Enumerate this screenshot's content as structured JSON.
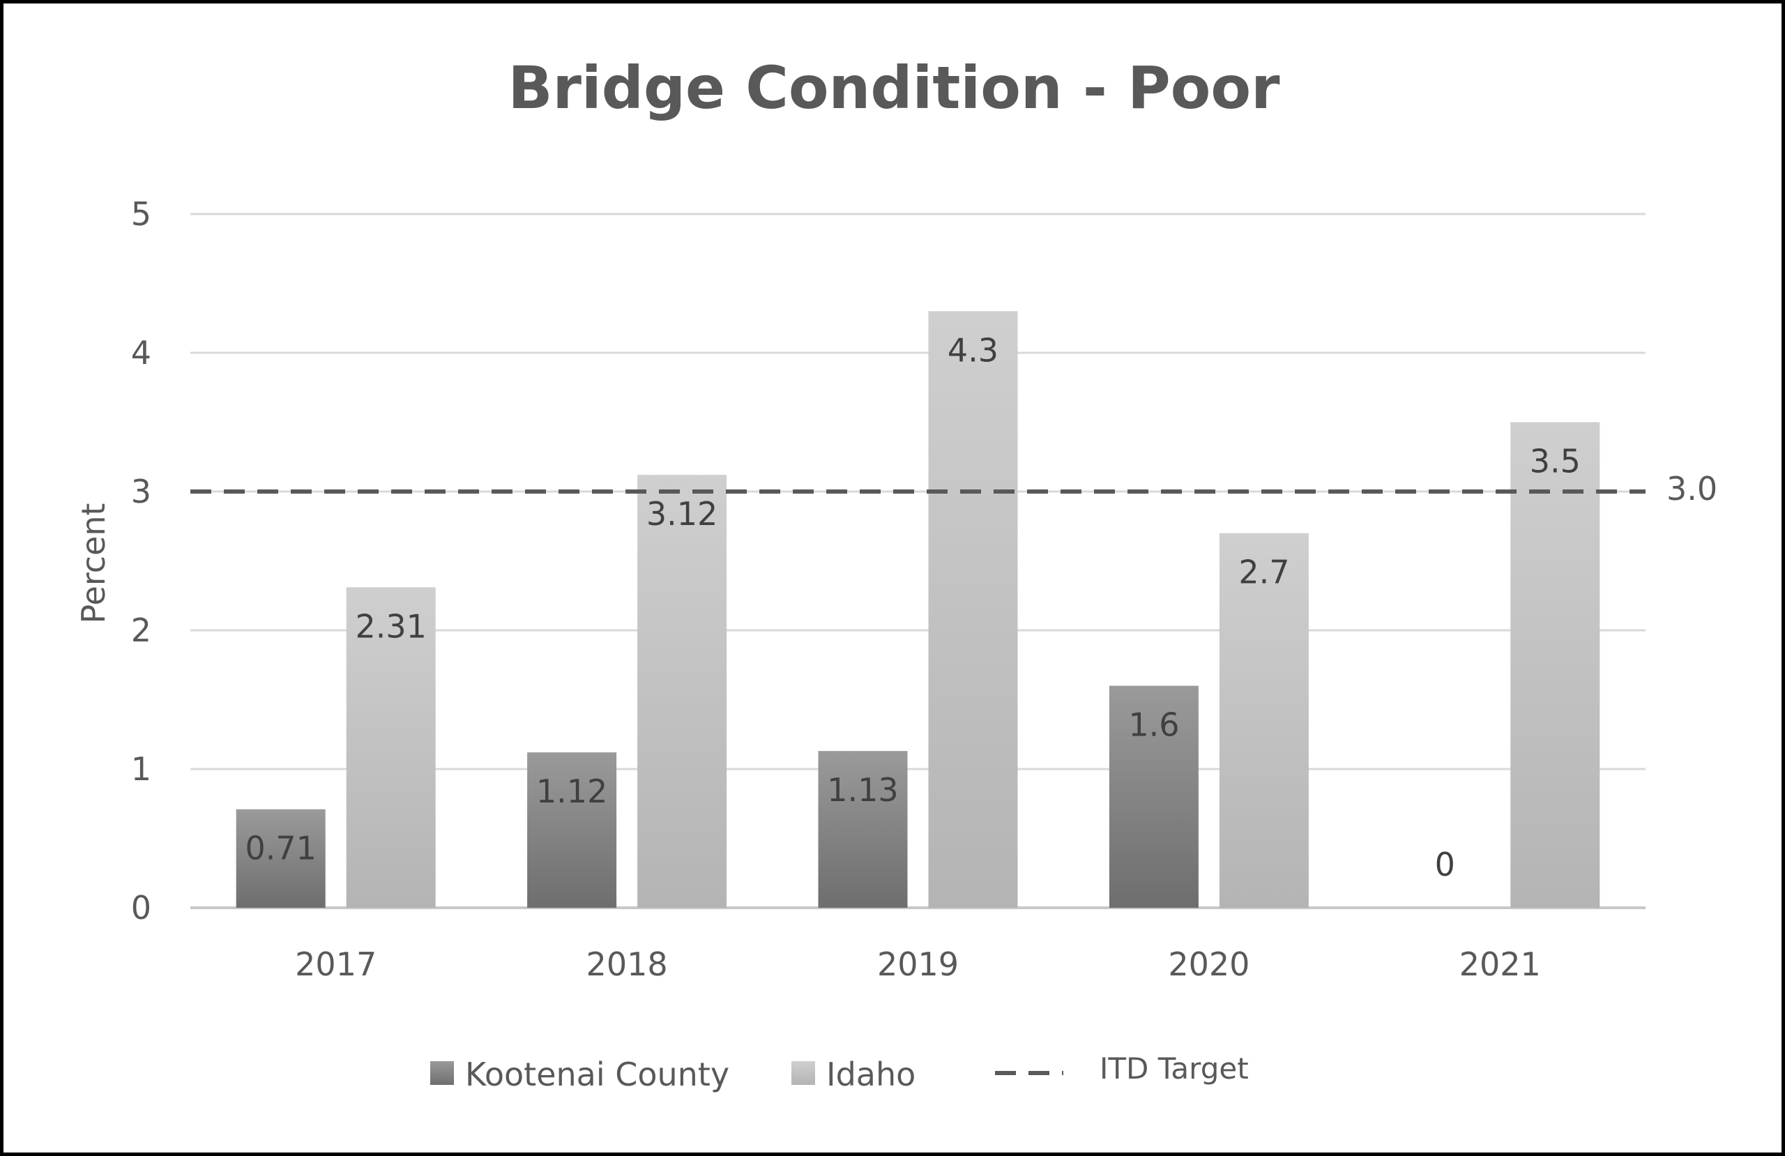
{
  "chart_data": {
    "type": "bar",
    "title": "Bridge Condition - Poor",
    "xlabel": "",
    "ylabel": "Percent",
    "ylim": [
      0,
      5
    ],
    "yticks": [
      "0",
      "1",
      "2",
      "3",
      "4",
      "5"
    ],
    "grid": true,
    "legend_position": "bottom",
    "categories": [
      "2017",
      "2018",
      "2019",
      "2020",
      "2021"
    ],
    "series": [
      {
        "name": "Kootenai County",
        "values": [
          0.71,
          1.12,
          1.13,
          1.6,
          0
        ],
        "labels": [
          "0.71",
          "1.12",
          "1.13",
          "1.6",
          "0"
        ],
        "color": "#8a8a8a"
      },
      {
        "name": "Idaho",
        "values": [
          2.31,
          3.12,
          4.3,
          2.7,
          3.5
        ],
        "labels": [
          "2.31",
          "3.12",
          "4.3",
          "2.7",
          "3.5"
        ],
        "color": "#c4c4c4"
      }
    ],
    "target": {
      "name": "ITD Target",
      "value": 3.0,
      "label": "3.0",
      "color": "#595959"
    }
  }
}
